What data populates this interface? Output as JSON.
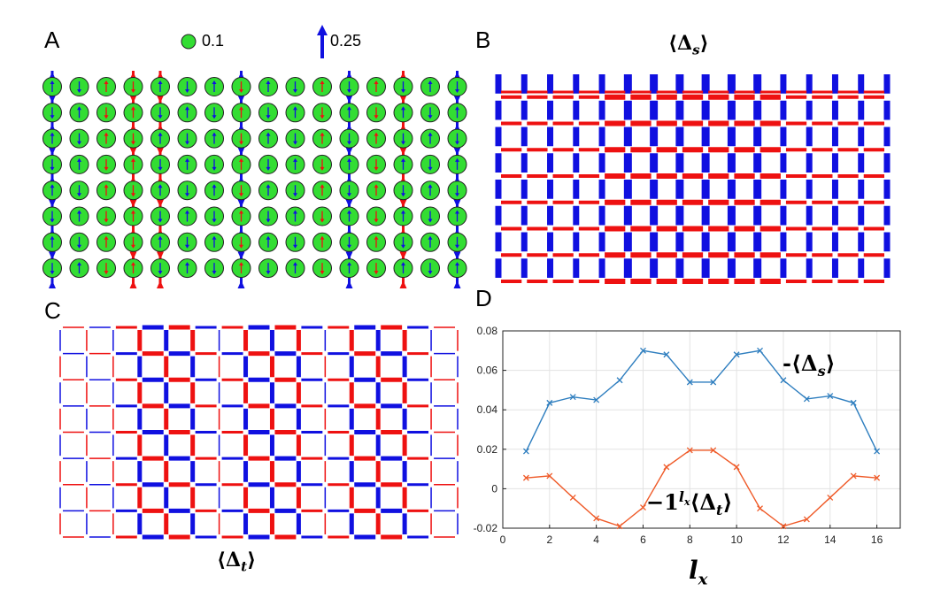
{
  "panels": {
    "a": "A",
    "b": "B",
    "c": "C",
    "d": "D"
  },
  "legend": {
    "circle_value": "0.1",
    "arrow_value": "0.25"
  },
  "panel_b_title": "⟨Δ",
  "panel_b_sub": "s",
  "panel_c_label": "⟨Δ",
  "panel_c_sub": "t",
  "colors": {
    "green": "#33dd33",
    "blue": "#1010e0",
    "red": "#ee1111",
    "series_s": "#2e7ebf",
    "series_t": "#ef5a28"
  },
  "chart_data": {
    "type": "line",
    "x": [
      1,
      2,
      3,
      4,
      5,
      6,
      7,
      8,
      9,
      10,
      11,
      12,
      13,
      14,
      15,
      16
    ],
    "series": [
      {
        "name": "-⟨Δs⟩",
        "values": [
          0.019,
          0.0435,
          0.0465,
          0.045,
          0.055,
          0.07,
          0.068,
          0.054,
          0.054,
          0.068,
          0.07,
          0.055,
          0.0455,
          0.047,
          0.0435,
          0.019
        ]
      },
      {
        "name": "−1^lx⟨Δt⟩",
        "values": [
          0.0055,
          0.0065,
          -0.0045,
          -0.015,
          -0.019,
          -0.0095,
          0.011,
          0.0195,
          0.0195,
          0.011,
          -0.01,
          -0.019,
          -0.0155,
          -0.0045,
          0.0065,
          0.0055
        ]
      }
    ],
    "xlabel": "l",
    "xlabel_sub": "x",
    "xlim": [
      0,
      17
    ],
    "ylim": [
      -0.02,
      0.08
    ],
    "xticks": [
      "0",
      "2",
      "4",
      "6",
      "8",
      "10",
      "12",
      "14",
      "16"
    ],
    "yticks": [
      "-0.02",
      "0",
      "0.02",
      "0.04",
      "0.06",
      "0.08"
    ],
    "grid": true,
    "label_s": "-⟨Δ",
    "label_s_sub": "s",
    "label_t_prefix": "−1",
    "label_t_sup": "l",
    "label_t_supsub": "x",
    "label_t_body": "⟨Δ",
    "label_t_sub": "t"
  }
}
